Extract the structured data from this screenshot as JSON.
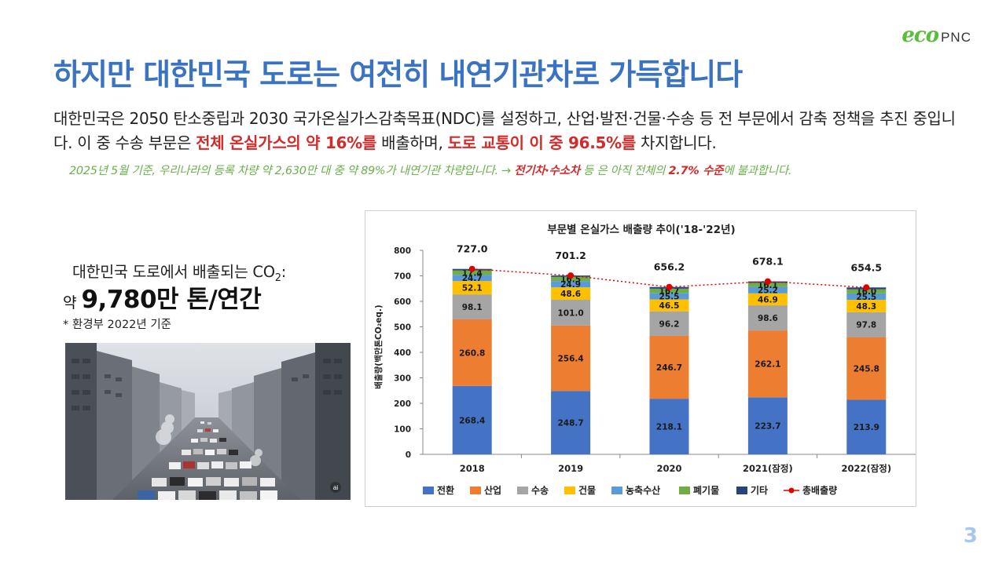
{
  "logo": {
    "eco": "eco",
    "pnc": "PNC",
    "color": "#5bbd3c"
  },
  "title": "하지만 대한민국 도로는 여전히 내연기관차로 가득합니다",
  "intro": {
    "part1": "대한민국은 2050 탄소중립과 2030 국가온실가스감축목표(NDC)를 설정하고, 산업·발전·건물·수송 등 전 부문에서 감축 정책을 추진 중입니다. 이 중 수송 부문은 ",
    "hl1": "전체 온실가스의 약 16%를",
    "part2": " 배출하며, ",
    "hl2": "도로 교통이 이 중 96.5%를",
    "part3": " 차지합니다."
  },
  "note": {
    "part1": "2025년 5월 기준, 우리나라의 등록 차량 약 2,630만 대 중 약 89%가 내연기관 차량입니다. → ",
    "hl1": "전기차·수소차",
    "part2": " 등 은 아직 전체의 ",
    "hl2": "2.7% 수준",
    "part3": "에 불과합니다."
  },
  "co2": {
    "label_prefix": "대한민국 도로에서 배출되는 CO",
    "label_sub": "2",
    "label_suffix": ":",
    "value_prefix": "약",
    "value": "9,780만 톤/연간",
    "source": "* 환경부 2022년 기준"
  },
  "photo": {
    "icon": "city-traffic-photo",
    "badge": "ai"
  },
  "chart_data": {
    "type": "bar",
    "stacked": true,
    "title": "부문별 온실가스 배출량 추이('18-'22년)",
    "ylabel": "배출량(백만톤CO₂eq.)",
    "xlabel": "",
    "ylim": [
      0,
      800
    ],
    "yticks": [
      0,
      100,
      200,
      300,
      400,
      500,
      600,
      700,
      800
    ],
    "categories": [
      "2018",
      "2019",
      "2020",
      "2021(잠정)",
      "2022(잠정)"
    ],
    "series": [
      {
        "name": "전환",
        "color": "#4472c4",
        "values": [
          268.4,
          248.7,
          218.1,
          223.7,
          213.9
        ],
        "labels": [
          "268.4",
          "248.7",
          "218.1",
          "223.7",
          "213.9"
        ]
      },
      {
        "name": "산업",
        "color": "#ed7d31",
        "values": [
          260.8,
          256.4,
          246.7,
          262.1,
          245.8
        ],
        "labels": [
          "260.8",
          "256.4",
          "246.7",
          "262.1",
          "245.8"
        ]
      },
      {
        "name": "수송",
        "color": "#a5a5a5",
        "values": [
          98.1,
          101.0,
          96.2,
          98.6,
          97.8
        ],
        "labels": [
          "98.1",
          "101.0",
          "96.2",
          "98.6",
          "97.8"
        ]
      },
      {
        "name": "건물",
        "color": "#ffc000",
        "values": [
          52.1,
          48.6,
          46.5,
          46.9,
          48.3
        ],
        "labels": [
          "52.1",
          "48.6",
          "46.5",
          "46.9",
          "48.3"
        ]
      },
      {
        "name": "농축수산",
        "color": "#5b9bd5",
        "values": [
          24.7,
          24.9,
          25.5,
          25.2,
          25.5
        ],
        "labels": [
          "24.7",
          "24.9",
          "25.5",
          "25.2",
          "25.5"
        ]
      },
      {
        "name": "폐기물",
        "color": "#70ad47",
        "values": [
          17.4,
          16.5,
          16.7,
          16.1,
          16.0
        ],
        "labels": [
          "17.4",
          "16.5",
          "16.7",
          "16.1",
          "16.0"
        ]
      },
      {
        "name": "기타",
        "color": "#264478",
        "values": [
          5.5,
          5.1,
          6.5,
          5.5,
          7.2
        ],
        "labels": [
          "",
          "",
          "",
          "",
          ""
        ]
      }
    ],
    "line": {
      "name": "총배출량",
      "color": "#e00000",
      "values": [
        727.0,
        701.2,
        656.2,
        678.1,
        654.5
      ],
      "labels": [
        "727.0",
        "701.2",
        "656.2",
        "678.1",
        "654.5"
      ]
    },
    "grid": false,
    "legend": "bottom"
  },
  "page_number": "3"
}
